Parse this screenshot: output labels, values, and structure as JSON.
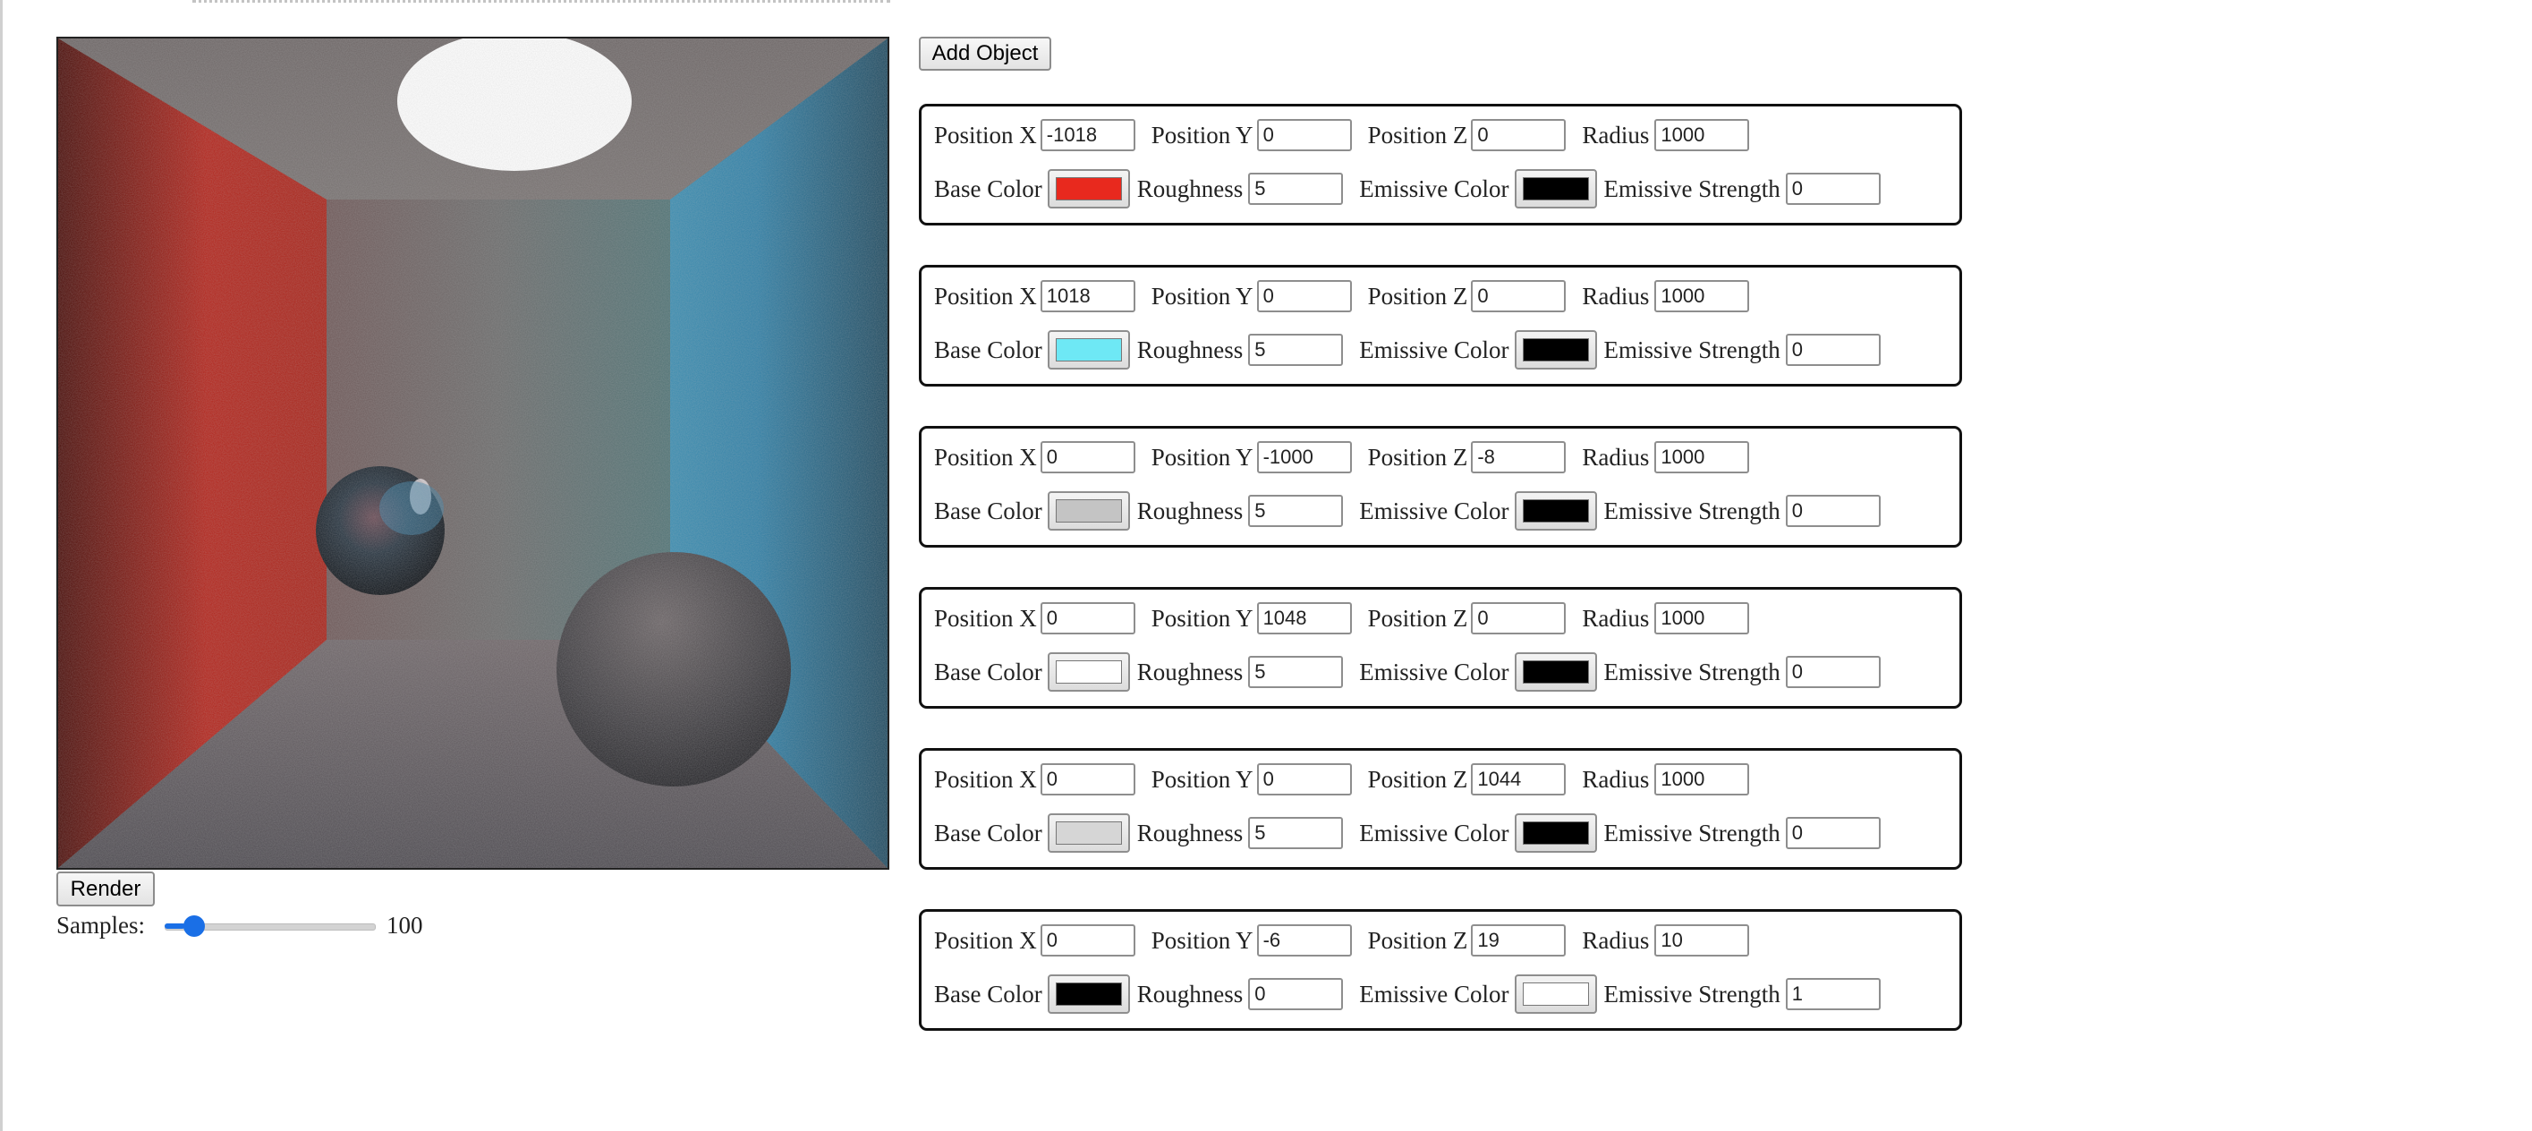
{
  "controls": {
    "add_object_label": "Add Object",
    "render_label": "Render",
    "samples_label": "Samples:",
    "samples_value": "100",
    "samples_min": 1,
    "samples_max": 1000
  },
  "labels": {
    "position_x": "Position X",
    "position_y": "Position Y",
    "position_z": "Position Z",
    "radius": "Radius",
    "base_color": "Base Color",
    "roughness": "Roughness",
    "emissive_color": "Emissive Color",
    "emissive_strength": "Emissive Strength"
  },
  "objects": [
    {
      "position_x": "-1018",
      "position_y": "0",
      "position_z": "0",
      "radius": "1000",
      "base_color": "#e8291e",
      "roughness": "5",
      "emissive_color": "#000000",
      "emissive_strength": "0"
    },
    {
      "position_x": "1018",
      "position_y": "0",
      "position_z": "0",
      "radius": "1000",
      "base_color": "#6ee8f5",
      "roughness": "5",
      "emissive_color": "#000000",
      "emissive_strength": "0"
    },
    {
      "position_x": "0",
      "position_y": "-1000",
      "position_z": "-8",
      "radius": "1000",
      "base_color": "#c4c4c4",
      "roughness": "5",
      "emissive_color": "#000000",
      "emissive_strength": "0"
    },
    {
      "position_x": "0",
      "position_y": "1048",
      "position_z": "0",
      "radius": "1000",
      "base_color": "#ffffff",
      "roughness": "5",
      "emissive_color": "#000000",
      "emissive_strength": "0"
    },
    {
      "position_x": "0",
      "position_y": "0",
      "position_z": "1044",
      "radius": "1000",
      "base_color": "#d6d6d6",
      "roughness": "5",
      "emissive_color": "#000000",
      "emissive_strength": "0"
    },
    {
      "position_x": "0",
      "position_y": "-6",
      "position_z": "19",
      "radius": "10",
      "base_color": "#000000",
      "roughness": "0",
      "emissive_color": "#ffffff",
      "emissive_strength": "1"
    }
  ]
}
